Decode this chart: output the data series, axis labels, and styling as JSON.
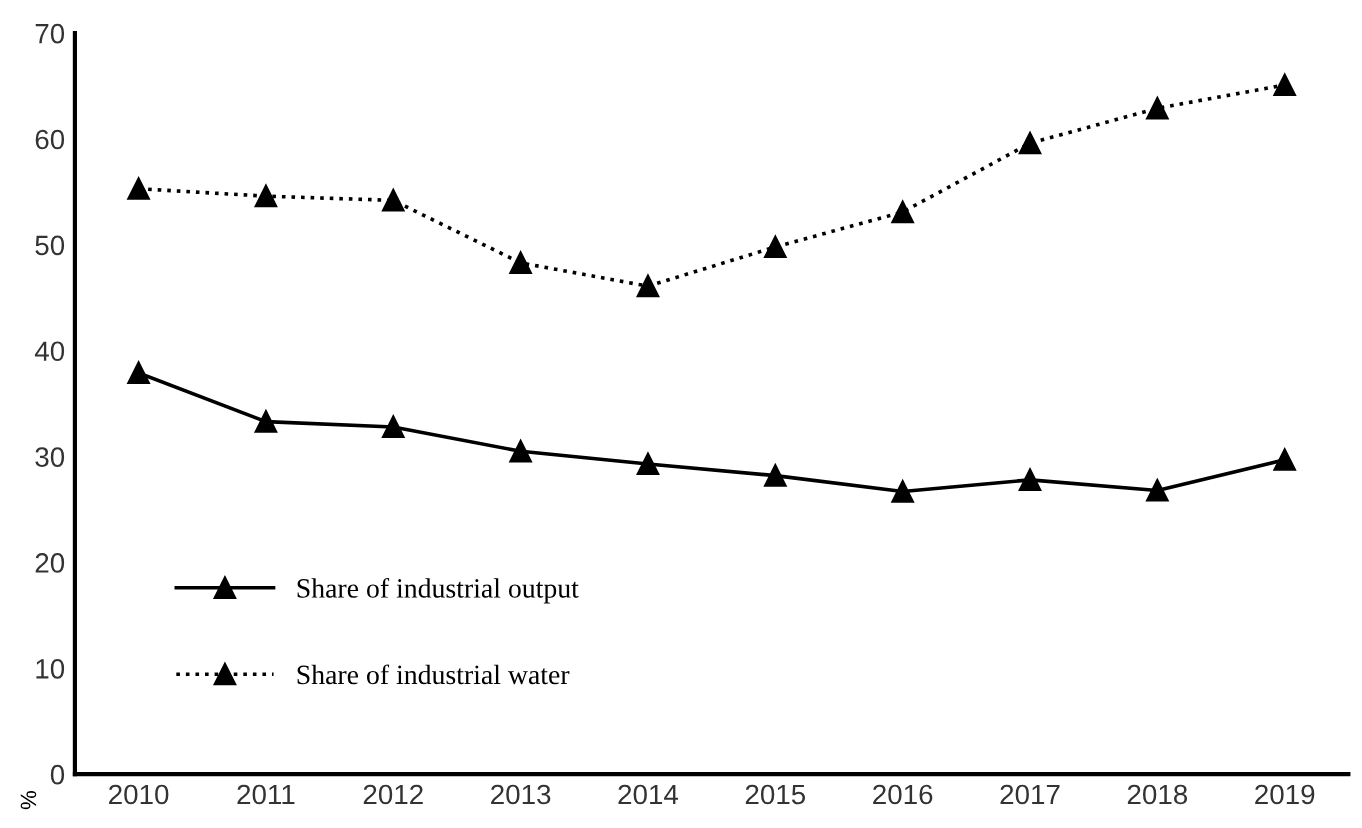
{
  "chart_data": {
    "type": "line",
    "ylabel": "%",
    "categories": [
      "2010",
      "2011",
      "2012",
      "2013",
      "2014",
      "2015",
      "2016",
      "2017",
      "2018",
      "2019"
    ],
    "series": [
      {
        "name": "Share of industrial output",
        "color": "#000000",
        "line_style": "solid",
        "values": [
          37.9,
          33.3,
          32.8,
          30.5,
          29.3,
          28.2,
          26.7,
          27.8,
          26.8,
          29.7
        ]
      },
      {
        "name": "Share of industrial water",
        "color": "#000000",
        "line_style": "dotted",
        "values": [
          55.3,
          54.6,
          54.2,
          48.3,
          46.1,
          49.8,
          53.1,
          59.6,
          62.9,
          65.1
        ]
      }
    ],
    "marker": "triangle",
    "ylim": [
      0,
      70
    ],
    "yticks": [
      0,
      10,
      20,
      30,
      40,
      50,
      60,
      70
    ],
    "grid": false,
    "legend": "bottom left"
  }
}
